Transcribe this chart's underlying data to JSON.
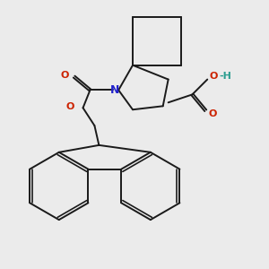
{
  "bg_color": "#ebebeb",
  "bond_color": "#1a1a1a",
  "N_color": "#2222cc",
  "O_color": "#cc2200",
  "OH_color": "#2a9d8f",
  "lw": 1.4,
  "figsize": [
    3.0,
    3.0
  ],
  "dpi": 100,
  "xlim": [
    -0.2,
    2.8
  ],
  "ylim": [
    -0.2,
    2.8
  ]
}
